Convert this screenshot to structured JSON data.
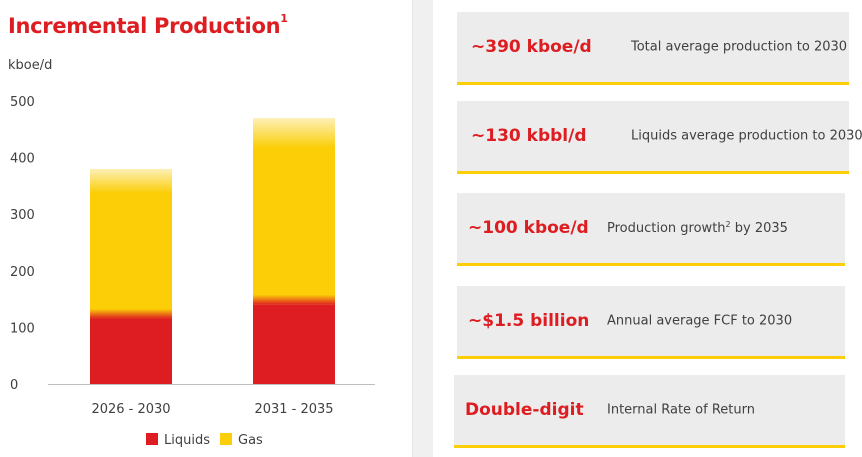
{
  "chart_data": {
    "type": "bar",
    "stacked": true,
    "title": "Incremental Production",
    "title_footnote": "1",
    "ylabel": "kboe/d",
    "ylim": [
      0,
      500
    ],
    "yticks": [
      0,
      100,
      200,
      300,
      400,
      500
    ],
    "categories": [
      "2026 - 2030",
      "2031 - 2035"
    ],
    "series": [
      {
        "name": "Liquids",
        "color": "#dd1d21",
        "values": [
          115,
          140
        ]
      },
      {
        "name": "Gas",
        "color": "#fbce07",
        "values": [
          265,
          330
        ]
      }
    ],
    "legend_position": "bottom"
  },
  "metrics": [
    {
      "value": "~390 kboe/d",
      "desc": "Total average production to 2030",
      "desc_sup": ""
    },
    {
      "value": "~130 kbbl/d",
      "desc": "Liquids average production to 2030",
      "desc_sup": ""
    },
    {
      "value": "~100 kboe/d",
      "desc": "Production growth",
      "desc_sup": "2",
      "desc_suffix": " by 2035"
    },
    {
      "value": "~$1.5 billion",
      "desc": "Annual average FCF to 2030",
      "desc_sup": ""
    },
    {
      "value": "Double-digit",
      "desc": "Internal Rate of Return",
      "desc_sup": ""
    }
  ],
  "colors": {
    "accent_red": "#dd1d21",
    "accent_yellow": "#fbce07"
  }
}
